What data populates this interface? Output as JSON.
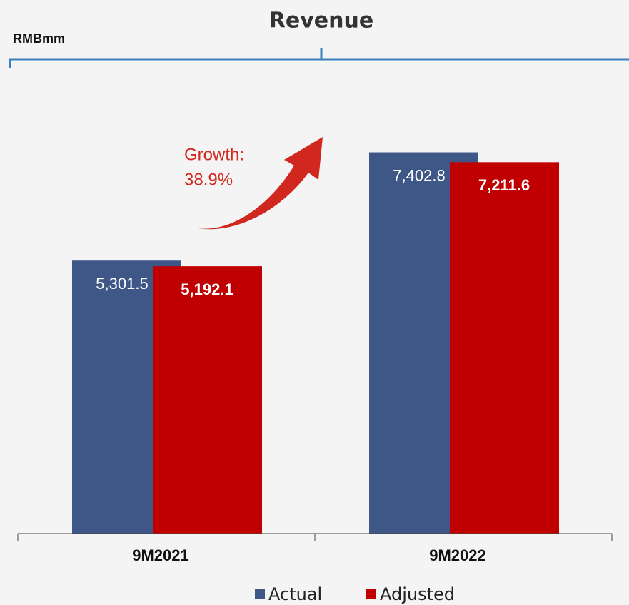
{
  "chart_data": {
    "type": "bar",
    "title": "Revenue",
    "unit_label": "RMBmm",
    "categories": [
      "9M2021",
      "9M2022"
    ],
    "series": [
      {
        "name": "Actual",
        "color": "#3f5787",
        "values": [
          5301.5,
          7402.8
        ],
        "value_labels": [
          "5,301.5",
          "7,402.8"
        ]
      },
      {
        "name": "Adjusted",
        "color": "#c00000",
        "values": [
          5192.1,
          7211.6
        ],
        "value_labels": [
          "5,192.1",
          "7,211.6"
        ]
      }
    ],
    "annotation": [
      "Growth:",
      "38.9%"
    ],
    "ylim": [
      0,
      10000
    ],
    "legend": "bottom"
  }
}
